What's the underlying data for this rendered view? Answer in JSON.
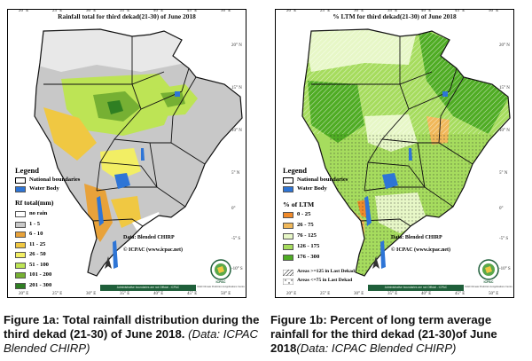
{
  "colors": {
    "no_rain": "#ffffff",
    "r_1_5": "#c8c8c8",
    "r_6_10": "#e8a23a",
    "r_11_25": "#f0c842",
    "r_26_50": "#f2ee64",
    "r_51_100": "#bde455",
    "r_101_200": "#76b033",
    "r_201_300": "#2f7f22",
    "ltm_0_25": "#f08a2a",
    "ltm_26_75": "#f0b85a",
    "ltm_76_125": "#e7f7c7",
    "ltm_126_175": "#a6dc5e",
    "ltm_176_300": "#4fac24",
    "water": "#2e75d6",
    "border": "#111111"
  },
  "axes": {
    "lon_top": [
      "20° E",
      "25° E",
      "30° E",
      "35° E",
      "40° E",
      "45° E",
      "50° E"
    ],
    "lon_bottom": [
      "20° E",
      "25° E",
      "30° E",
      "35° E",
      "40° E",
      "45° E",
      "50° E"
    ],
    "lat_right": [
      "20° N",
      "15° N",
      "10° N",
      "5° N",
      "0°",
      "-5° S",
      "-10° S"
    ]
  },
  "map1": {
    "title": "Rainfall total for third dekad(21-30) of June 2018",
    "legend_title": "Legend",
    "national_boundaries": "National boundaries",
    "water_body": "Water Body",
    "scale_title": "Rf total(mm)",
    "classes": [
      {
        "label": "no rain",
        "color": "#ffffff"
      },
      {
        "label": "1 - 5",
        "color": "#c8c8c8"
      },
      {
        "label": "6 - 10",
        "color": "#e8a23a"
      },
      {
        "label": "11 - 25",
        "color": "#f0c842"
      },
      {
        "label": "26 - 50",
        "color": "#f2ee64"
      },
      {
        "label": "51 - 100",
        "color": "#bde455"
      },
      {
        "label": "101 - 200",
        "color": "#76b033"
      },
      {
        "label": "201 - 300",
        "color": "#2f7f22"
      }
    ],
    "data_source": "Data: Blended CHIRP",
    "copyright": "© ICPAC (www.icpac.net)",
    "disclaimer": "Administrative boundaries are not Official - ICPAC",
    "logo_name": "ICPAC",
    "logo_sub": "IGAD Climate Prediction & Applications Centre"
  },
  "map2": {
    "title": "% LTM  for third dekad(21-30) of June 2018",
    "legend_title": "Legend",
    "national_boundaries": "National boundaries",
    "water_body": "Water Body",
    "scale_title": "% of LTM",
    "classes": [
      {
        "label": "0 - 25",
        "color": "#f08a2a"
      },
      {
        "label": "26 - 75",
        "color": "#f0b85a"
      },
      {
        "label": "76 - 125",
        "color": "#e7f7c7"
      },
      {
        "label": "126 - 175",
        "color": "#a6dc5e"
      },
      {
        "label": "176 - 300",
        "color": "#4fac24"
      }
    ],
    "hatch_1": "Areas >=125 in Last Dekad",
    "hatch_2": "Areas <=75 in Last Dekad",
    "data_source": "Data: Blended CHIRP",
    "copyright": "© ICPAC (www.icpac.net)",
    "disclaimer": "Administrative boundaries are not Official - ICPAC",
    "logo_name": "ICPAC",
    "logo_sub": "IGAD Climate Prediction & Applications Centre"
  },
  "captions": {
    "left_bold": "Figure 1a: Total rainfall distribution during the third dekad (21-30) of June 2018.",
    "left_italic": "(Data: ICPAC Blended CHIRP)",
    "right_bold": "Figure 1b: Percent of long term average rainfall for the third dekad (21-30)of June 2018",
    "right_italic": "(Data: ICPAC Blended CHIRP)"
  }
}
